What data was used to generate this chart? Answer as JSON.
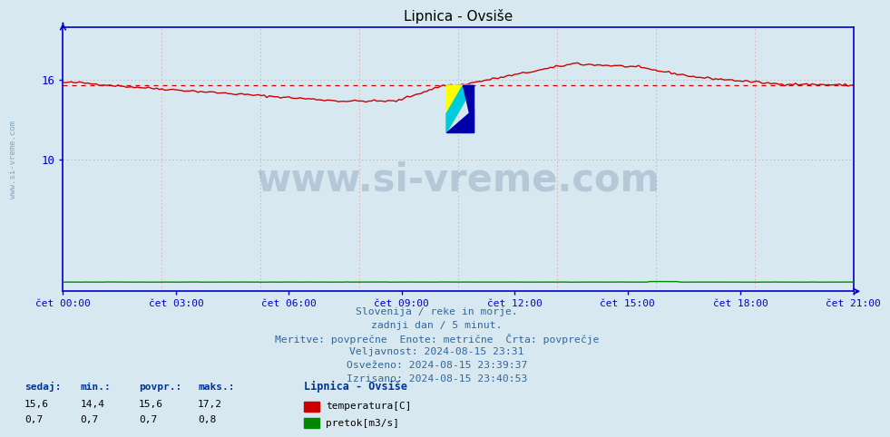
{
  "title": "Lipnica - Ovsiše",
  "bg_color": "#d8e8f0",
  "plot_bg_color": "#d8e8f0",
  "temp_color": "#cc0000",
  "flow_color": "#008800",
  "avg_color": "#cc0000",
  "axis_color": "#0000cc",
  "tick_color": "#0000aa",
  "grid_color_h": "#bbbbbb",
  "grid_color_v": "#ddaaaa",
  "footer_color": "#336699",
  "legend_color": "#003399",
  "watermark_color": "#1a3a6e",
  "ylim": [
    0,
    20
  ],
  "yticks": [
    10,
    16
  ],
  "n_points": 288,
  "temp_avg": 15.6,
  "xtick_labels": [
    "čet 00:00",
    "čet 03:00",
    "čet 06:00",
    "čet 09:00",
    "čet 12:00",
    "čet 15:00",
    "čet 18:00",
    "čet 21:00"
  ],
  "footer_lines": [
    "Slovenija / reke in morje.",
    "zadnji dan / 5 minut.",
    "Meritve: povprečne  Enote: metrične  Črta: povprečje",
    "Veljavnost: 2024-08-15 23:31",
    "Osveženo: 2024-08-15 23:39:37",
    "Izrisano: 2024-08-15 23:40:53"
  ],
  "legend_title": "Lipnica - Ovsiše",
  "legend_items": [
    {
      "label": "temperatura[C]",
      "color": "#cc0000"
    },
    {
      "label": "pretok[m3/s]",
      "color": "#008800"
    }
  ],
  "stats_headers": [
    "sedaj:",
    "min.:",
    "povpr.:",
    "maks.:"
  ],
  "stats_temp": [
    "15,6",
    "14,4",
    "15,6",
    "17,2"
  ],
  "stats_flow": [
    "0,7",
    "0,7",
    "0,7",
    "0,8"
  ],
  "watermark_text": "www.si-vreme.com",
  "side_text": "www.si-vreme.com"
}
